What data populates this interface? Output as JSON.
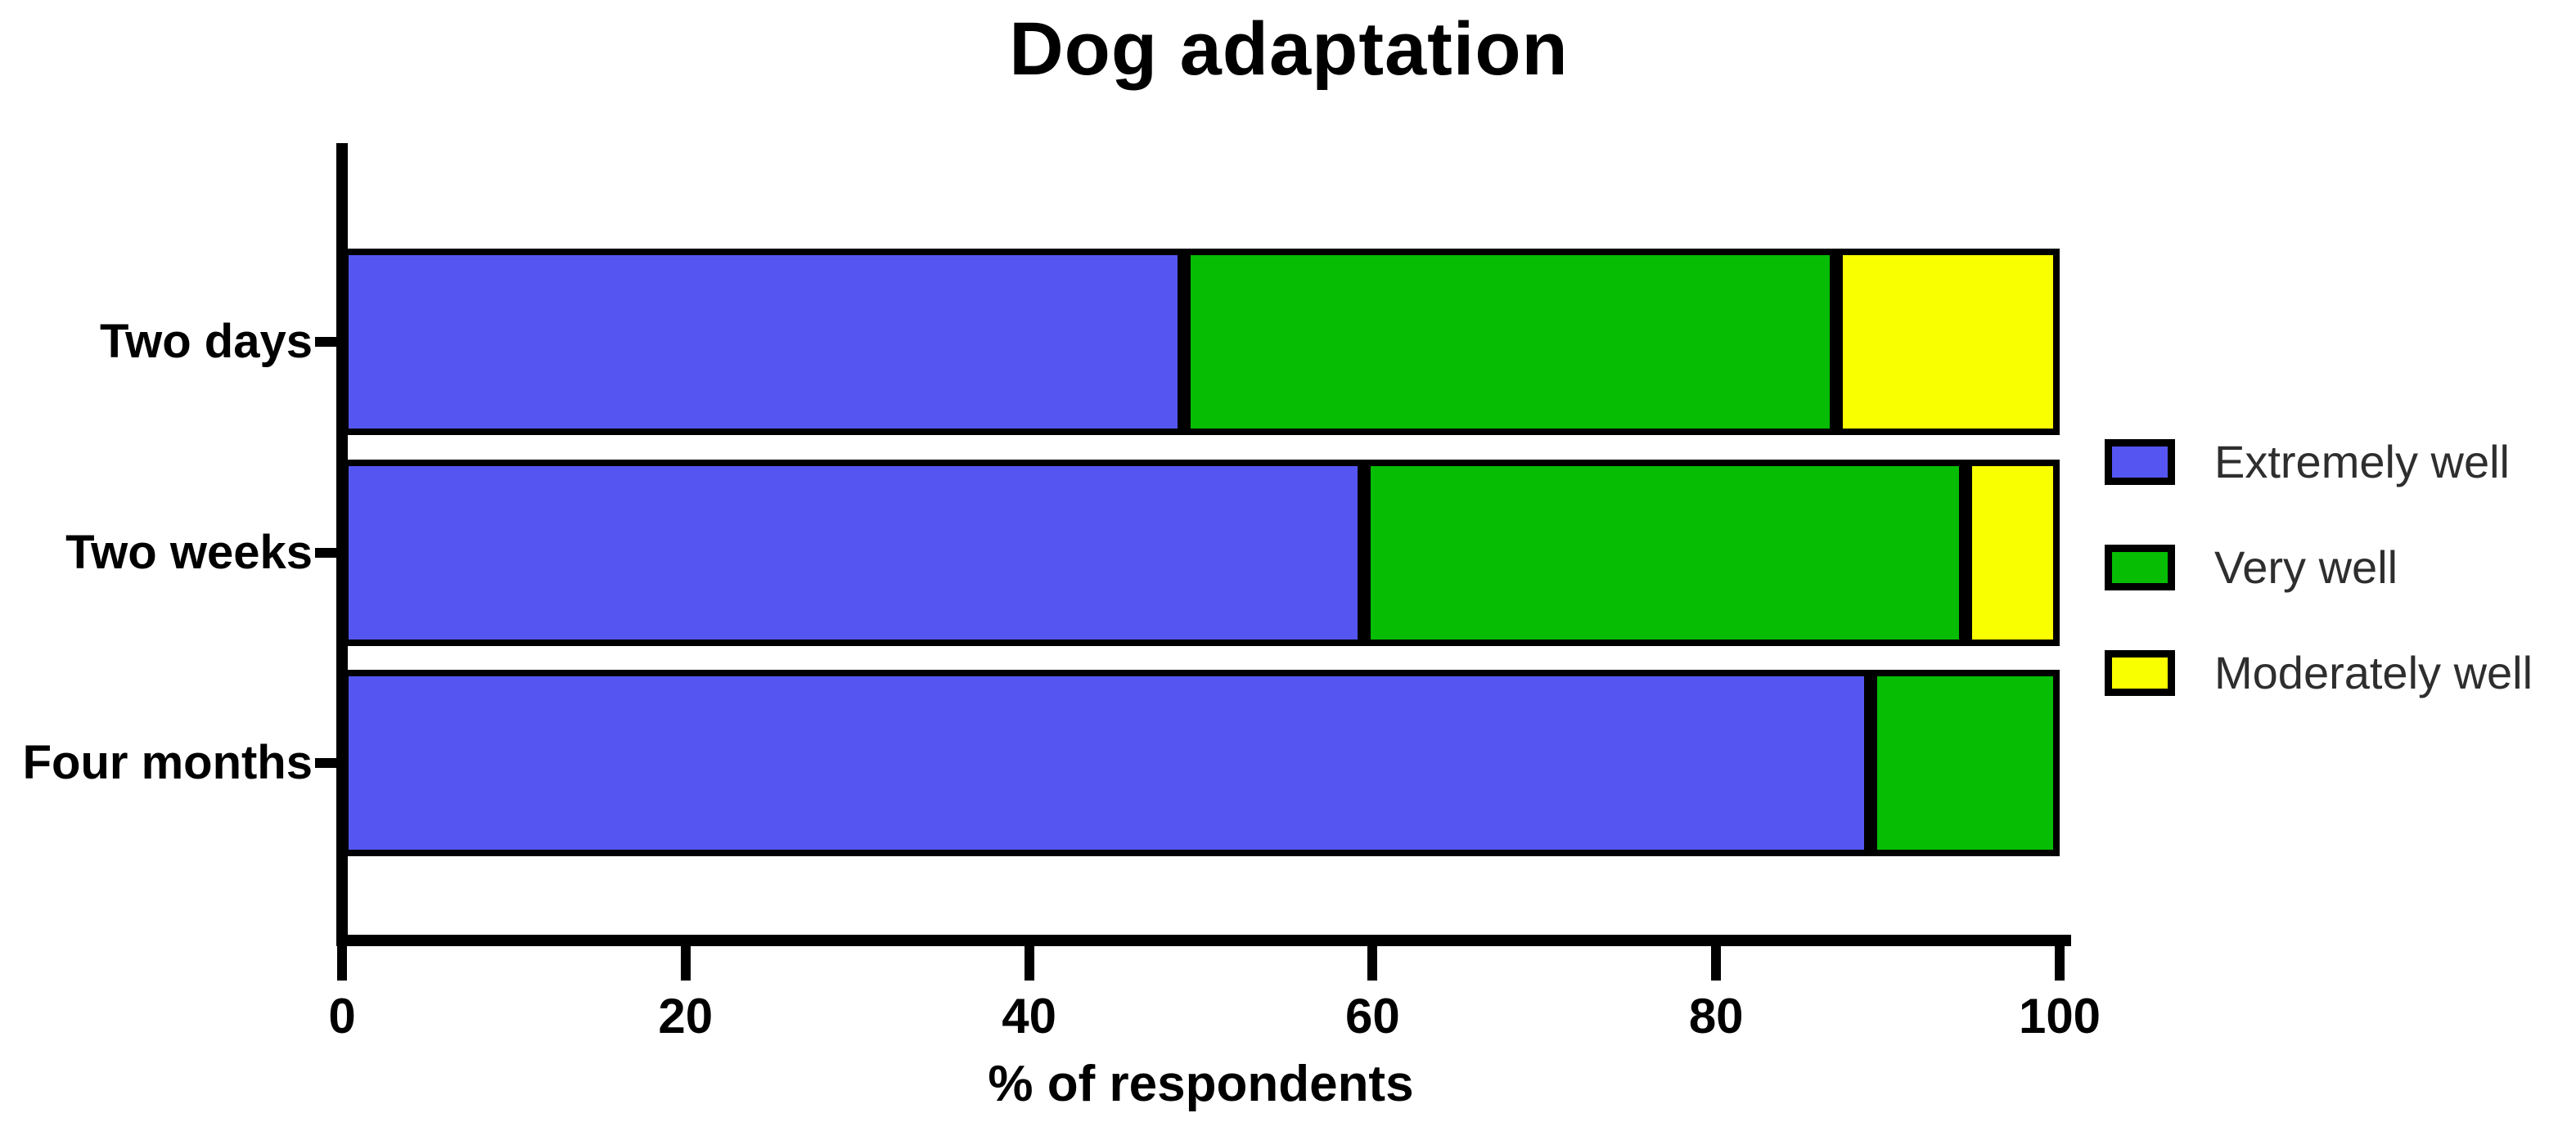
{
  "figure": {
    "background": "#ffffff"
  },
  "chart_data": {
    "type": "bar",
    "orientation": "horizontal",
    "stacked": true,
    "title": "Dog adaptation",
    "xlabel": "% of respondents",
    "categories": [
      "Two days",
      "Two weeks",
      "Four months"
    ],
    "series": [
      {
        "name": "Extremely well",
        "color": "#5556F2",
        "values": [
          49,
          59.5,
          89
        ]
      },
      {
        "name": "Very well",
        "color": "#06BD03",
        "values": [
          38,
          35,
          11
        ]
      },
      {
        "name": "Moderately well",
        "color": "#FAFF00",
        "values": [
          13,
          5.5,
          0
        ]
      }
    ],
    "x_ticks": [
      "0",
      "20",
      "40",
      "60",
      "80",
      "100"
    ],
    "xlim": [
      0,
      100
    ],
    "grid": false,
    "legend_position": "right",
    "axis_color": "#000000",
    "bar_border_color": "#000000",
    "text_color": "#000000",
    "legend_text_color": "#2e2e2e"
  }
}
